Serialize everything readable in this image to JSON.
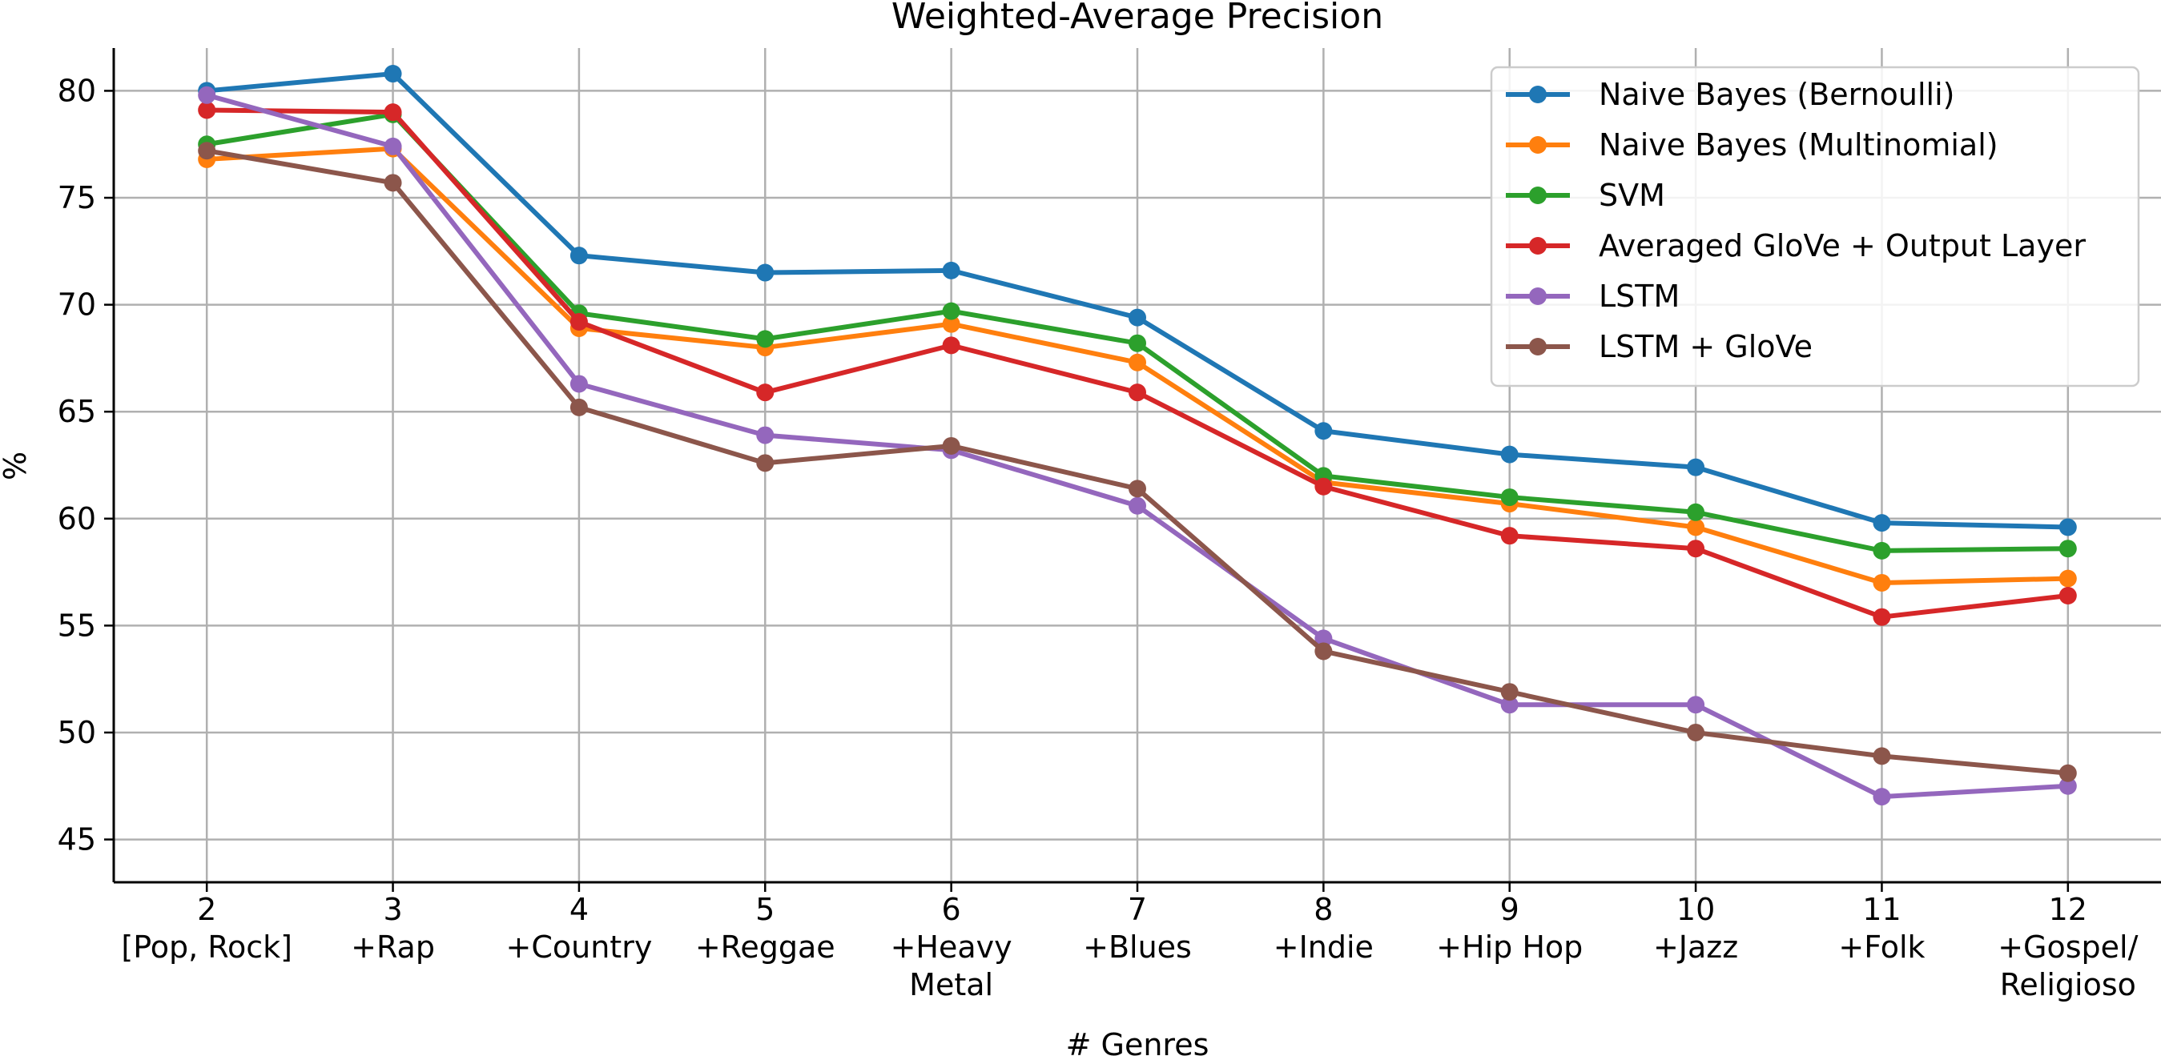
{
  "chart_data": {
    "type": "line",
    "title": "Weighted-Average Precision",
    "xlabel": "# Genres",
    "ylabel": "%",
    "x": [
      2,
      3,
      4,
      5,
      6,
      7,
      8,
      9,
      10,
      11,
      12
    ],
    "x_tick_labels": [
      [
        "2",
        "[Pop, Rock]"
      ],
      [
        "3",
        "+Rap"
      ],
      [
        "4",
        "+Country"
      ],
      [
        "5",
        "+Reggae"
      ],
      [
        "6",
        "+Heavy",
        "Metal"
      ],
      [
        "7",
        "+Blues"
      ],
      [
        "8",
        "+Indie"
      ],
      [
        "9",
        "+Hip Hop"
      ],
      [
        "10",
        "+Jazz"
      ],
      [
        "11",
        "+Folk"
      ],
      [
        "12",
        "+Gospel/",
        "Religioso"
      ]
    ],
    "y_ticks": [
      45,
      50,
      55,
      60,
      65,
      70,
      75,
      80
    ],
    "xlim": [
      1.5,
      12.5
    ],
    "ylim": [
      43,
      82
    ],
    "grid": true,
    "legend_position": "top-right",
    "series": [
      {
        "name": "Naive Bayes (Bernoulli)",
        "color": "#1f77b4",
        "values": [
          80.0,
          80.8,
          72.3,
          71.5,
          71.6,
          69.4,
          64.1,
          63.0,
          62.4,
          59.8,
          59.6
        ]
      },
      {
        "name": "Naive Bayes (Multinomial)",
        "color": "#ff7f0e",
        "values": [
          76.8,
          77.3,
          68.9,
          68.0,
          69.1,
          67.3,
          61.7,
          60.7,
          59.6,
          57.0,
          57.2
        ]
      },
      {
        "name": "SVM",
        "color": "#2ca02c",
        "values": [
          77.5,
          78.9,
          69.6,
          68.4,
          69.7,
          68.2,
          62.0,
          61.0,
          60.3,
          58.5,
          58.6
        ]
      },
      {
        "name": "Averaged GloVe + Output Layer",
        "color": "#d62728",
        "values": [
          79.1,
          79.0,
          69.2,
          65.9,
          68.1,
          65.9,
          61.5,
          59.2,
          58.6,
          55.4,
          56.4
        ]
      },
      {
        "name": "LSTM",
        "color": "#9467bd",
        "values": [
          79.8,
          77.4,
          66.3,
          63.9,
          63.2,
          60.6,
          54.4,
          51.3,
          51.3,
          47.0,
          47.5
        ]
      },
      {
        "name": "LSTM + GloVe",
        "color": "#8c564b",
        "values": [
          77.2,
          75.7,
          65.2,
          62.6,
          63.4,
          61.4,
          53.8,
          51.9,
          50.0,
          48.9,
          48.1
        ]
      }
    ]
  }
}
